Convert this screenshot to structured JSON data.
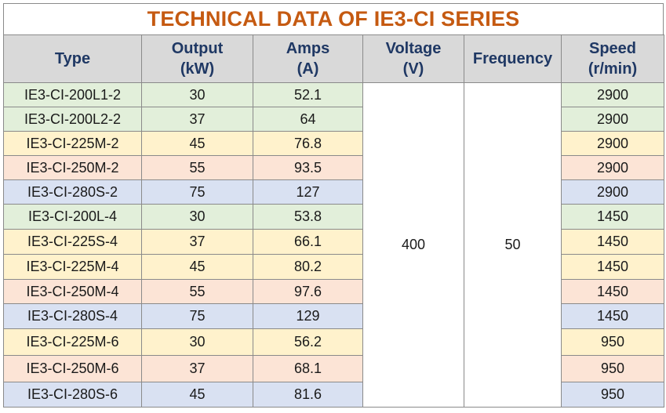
{
  "title": "TECHNICAL DATA OF IE3-CI SERIES",
  "headers": [
    {
      "line1": "Type",
      "line2": ""
    },
    {
      "line1": "Output",
      "line2": "(kW)"
    },
    {
      "line1": "Amps",
      "line2": "(A)"
    },
    {
      "line1": "Voltage",
      "line2": "(V)"
    },
    {
      "line1": "Frequency",
      "line2": ""
    },
    {
      "line1": "Speed",
      "line2": "(r/min)"
    }
  ],
  "voltage": "400",
  "frequency": "50",
  "colors": {
    "green": "#e2efda",
    "yellow": "#fff2cc",
    "orange": "#fce4d6",
    "blue": "#d9e1f2",
    "title": "#c55a11",
    "header_text": "#1f3864",
    "header_bg": "#d9d9d9"
  },
  "rows": [
    {
      "type": "IE3-CI-200L1-2",
      "output": "30",
      "amps": "52.1",
      "speed": "2900",
      "color": "green"
    },
    {
      "type": "IE3-CI-200L2-2",
      "output": "37",
      "amps": "64",
      "speed": "2900",
      "color": "green"
    },
    {
      "type": "IE3-CI-225M-2",
      "output": "45",
      "amps": "76.8",
      "speed": "2900",
      "color": "yellow"
    },
    {
      "type": "IE3-CI-250M-2",
      "output": "55",
      "amps": "93.5",
      "speed": "2900",
      "color": "orange"
    },
    {
      "type": "IE3-CI-280S-2",
      "output": "75",
      "amps": "127",
      "speed": "2900",
      "color": "blue"
    },
    {
      "type": "IE3-CI-200L-4",
      "output": "30",
      "amps": "53.8",
      "speed": "1450",
      "color": "green"
    },
    {
      "type": "IE3-CI-225S-4",
      "output": "37",
      "amps": "66.1",
      "speed": "1450",
      "color": "yellow"
    },
    {
      "type": "IE3-CI-225M-4",
      "output": "45",
      "amps": "80.2",
      "speed": "1450",
      "color": "yellow"
    },
    {
      "type": "IE3-CI-250M-4",
      "output": "55",
      "amps": "97.6",
      "speed": "1450",
      "color": "orange"
    },
    {
      "type": "IE3-CI-280S-4",
      "output": "75",
      "amps": "129",
      "speed": "1450",
      "color": "blue"
    },
    {
      "type": "IE3-CI-225M-6",
      "output": "30",
      "amps": "56.2",
      "speed": "950",
      "color": "yellow"
    },
    {
      "type": "IE3-CI-250M-6",
      "output": "37",
      "amps": "68.1",
      "speed": "950",
      "color": "orange"
    },
    {
      "type": "IE3-CI-280S-6",
      "output": "45",
      "amps": "81.6",
      "speed": "950",
      "color": "blue"
    }
  ]
}
